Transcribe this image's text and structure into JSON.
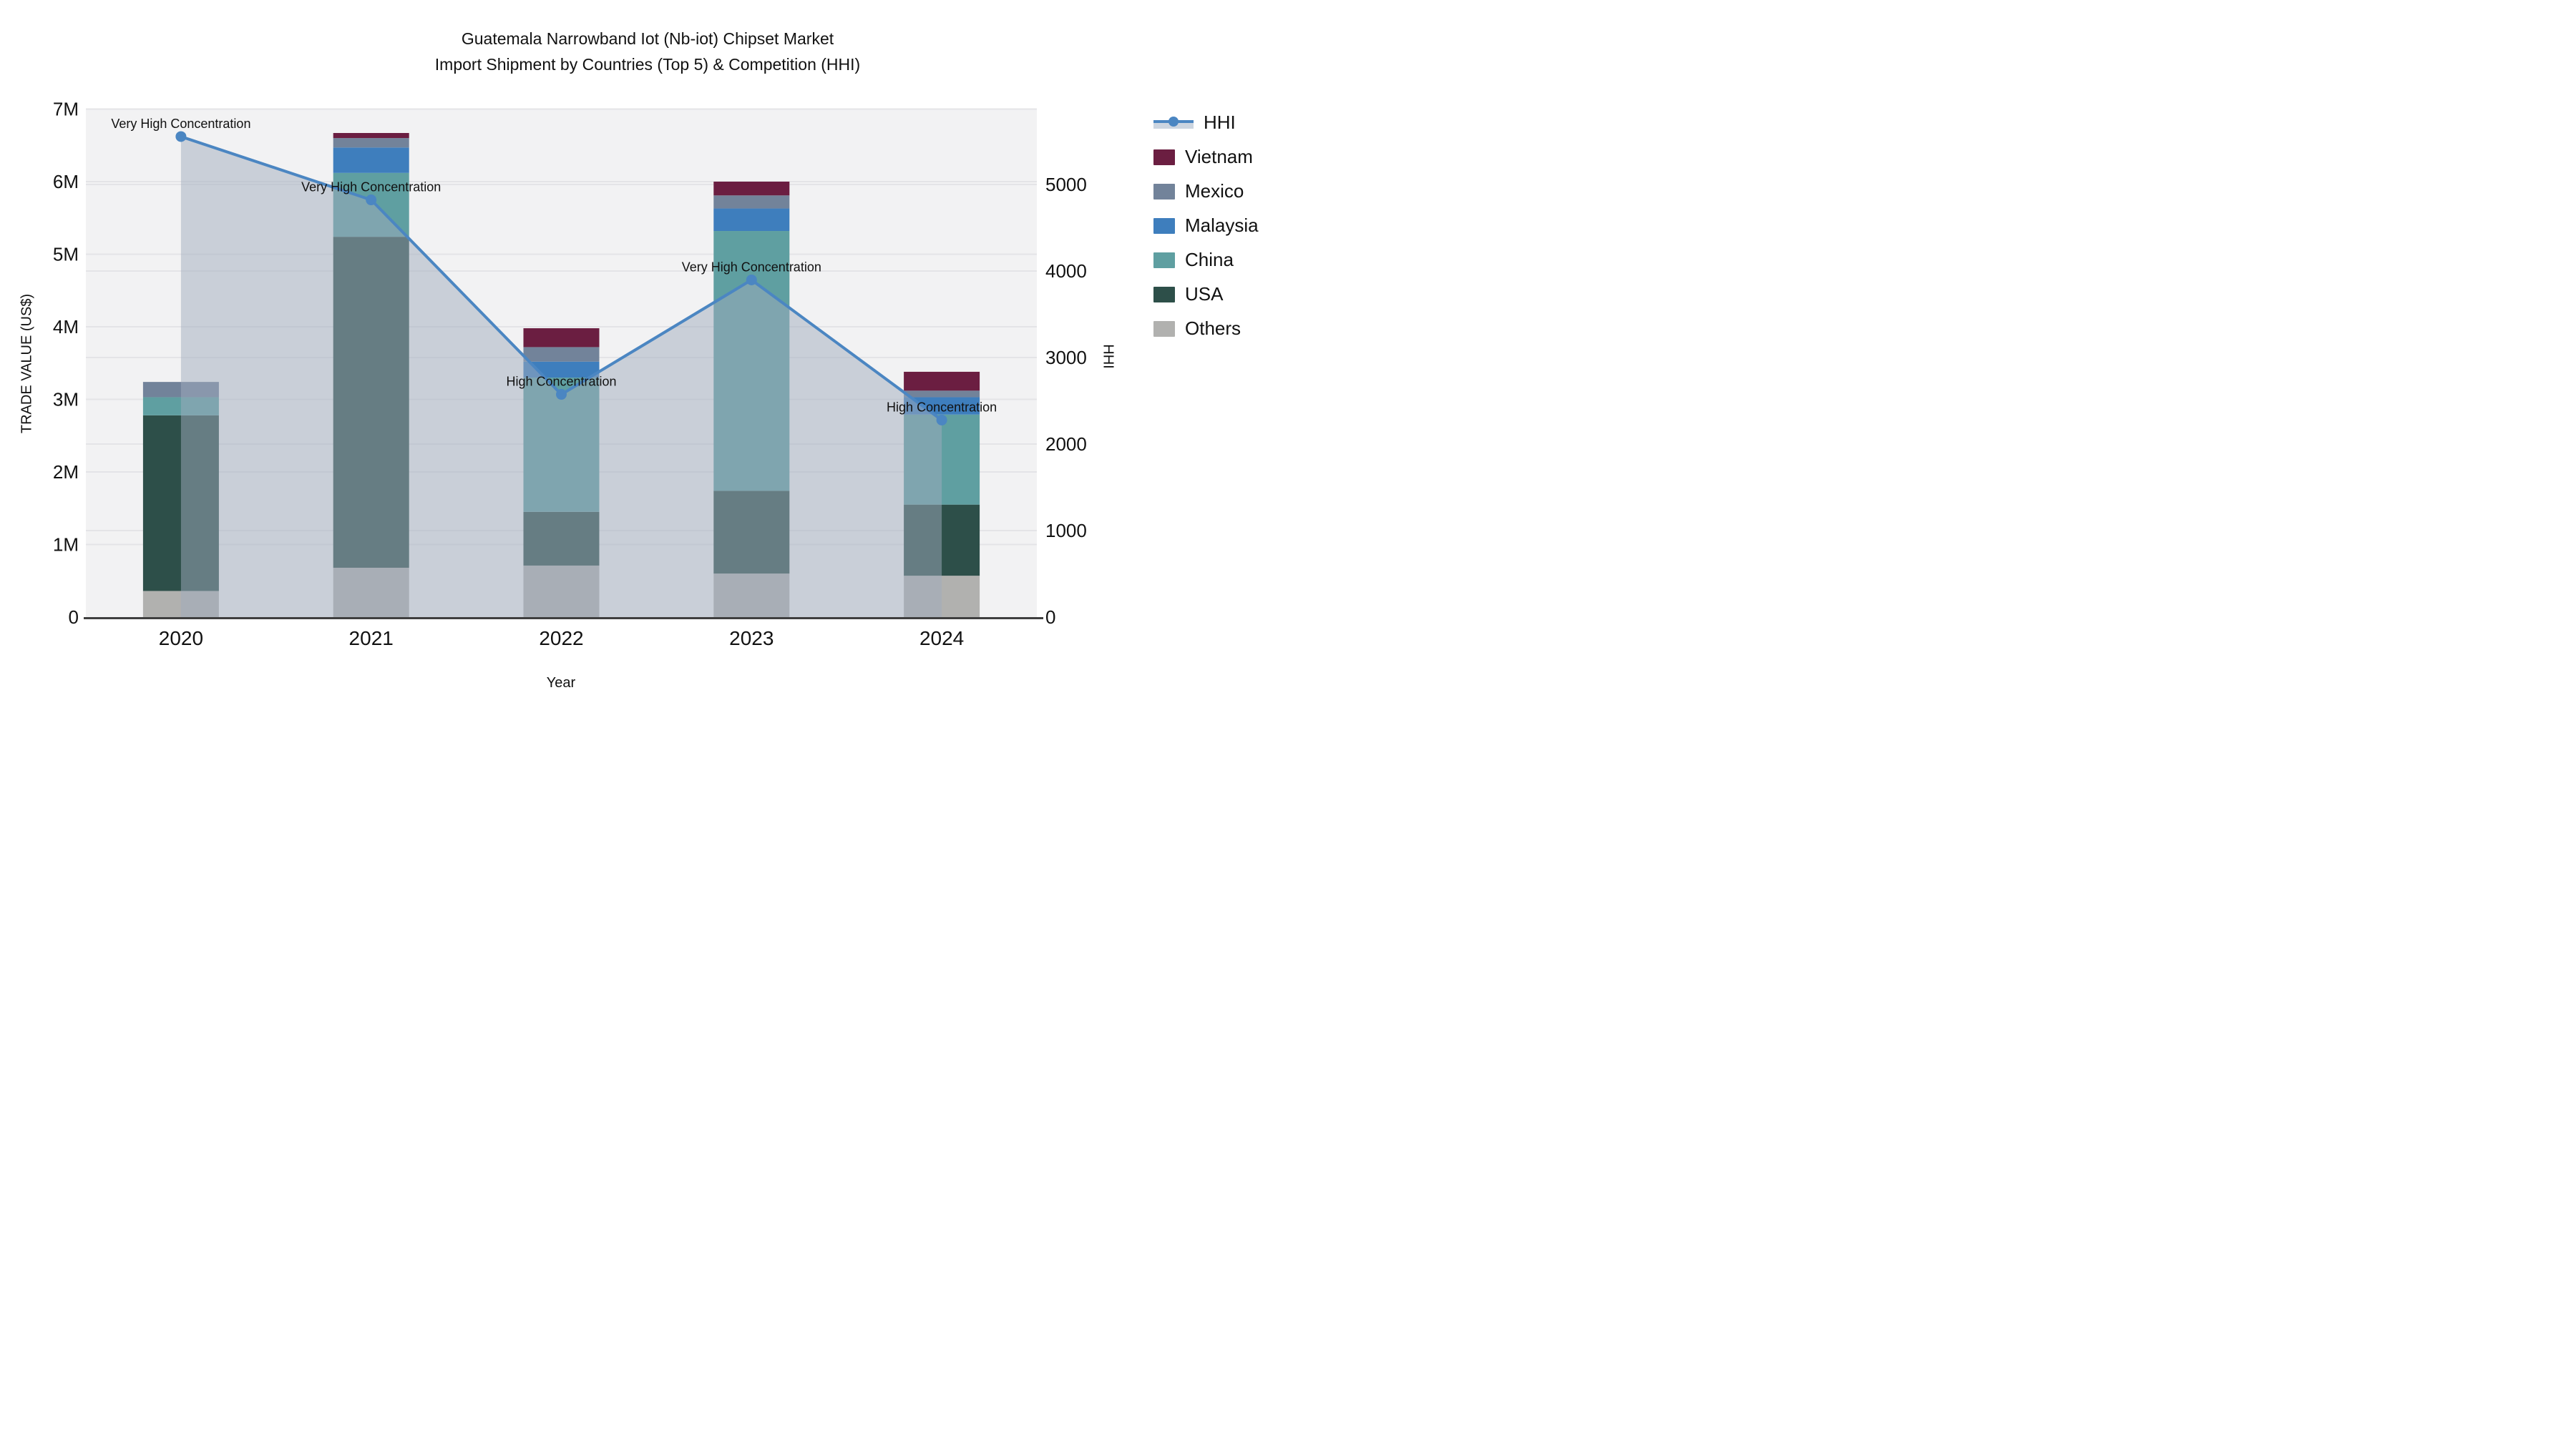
{
  "chart": {
    "title_line1": "Guatemala Narrowband Iot (Nb-iot) Chipset Market",
    "title_line2": "Import Shipment by Countries (Top 5) & Competition (HHI)",
    "xlabel": "Year",
    "ylabel_left": "TRADE VALUE (US$)",
    "ylabel_right": "HHI"
  },
  "legend": {
    "items": [
      {
        "label": "HHI",
        "type": "line",
        "color": "#4b86c2",
        "band": "#ccd5e0"
      },
      {
        "label": "Vietnam",
        "type": "box",
        "color": "#6b1e41"
      },
      {
        "label": "Mexico",
        "type": "box",
        "color": "#72839a"
      },
      {
        "label": "Malaysia",
        "type": "box",
        "color": "#3e7ebd"
      },
      {
        "label": "China",
        "type": "box",
        "color": "#5f9fa1"
      },
      {
        "label": "USA",
        "type": "box",
        "color": "#2d4f49"
      },
      {
        "label": "Others",
        "type": "box",
        "color": "#b1b1af"
      }
    ]
  },
  "chart_data": {
    "type": "bar",
    "subtype": "stacked-bars-with-line-overlay",
    "title": "Guatemala Narrowband Iot (Nb-iot) Chipset Market Import Shipment by Countries (Top 5) & Competition (HHI)",
    "xlabel": "Year",
    "ylabel": "TRADE VALUE (US$)",
    "ylabel_right": "HHI",
    "categories": [
      "2020",
      "2021",
      "2022",
      "2023",
      "2024"
    ],
    "values_unit": "million US$",
    "series": [
      {
        "name": "Others",
        "color": "#b1b1af",
        "values": [
          0.36,
          0.68,
          0.71,
          0.6,
          0.57
        ]
      },
      {
        "name": "USA",
        "color": "#2d4f49",
        "values": [
          2.42,
          4.56,
          0.74,
          1.14,
          0.98
        ]
      },
      {
        "name": "China",
        "color": "#5f9fa1",
        "values": [
          0.25,
          0.88,
          1.85,
          3.58,
          1.24
        ]
      },
      {
        "name": "Malaysia",
        "color": "#3e7ebd",
        "values": [
          0.0,
          0.35,
          0.22,
          0.31,
          0.24
        ]
      },
      {
        "name": "Mexico",
        "color": "#72839a",
        "values": [
          0.21,
          0.13,
          0.2,
          0.18,
          0.09
        ]
      },
      {
        "name": "Vietnam",
        "color": "#6b1e41",
        "values": [
          0.0,
          0.07,
          0.26,
          0.19,
          0.26
        ]
      }
    ],
    "bar_totals": [
      3.24,
      6.67,
      3.98,
      6.0,
      3.38
    ],
    "line_series": {
      "name": "HHI",
      "axis": "right",
      "color": "#4b86c2",
      "fill_color": "#9fabbe",
      "fill_opacity": 0.5,
      "values": [
        5554,
        4822,
        2574,
        3897,
        2277
      ]
    },
    "annotations": [
      "Very High Concentration",
      "Very High Concentration",
      "High Concentration",
      "Very High Concentration",
      "High Concentration"
    ],
    "left_axis": {
      "ticks": [
        "0",
        "1M",
        "2M",
        "3M",
        "4M",
        "5M",
        "6M",
        "7M"
      ],
      "min": 0,
      "max": 7
    },
    "right_axis": {
      "ticks": [
        "0",
        "1000",
        "2000",
        "3000",
        "4000",
        "5000"
      ],
      "min": 0,
      "max": 5000
    },
    "grid": true,
    "legend_position": "right",
    "plot_bg": "#f2f2f3",
    "grid_color": "#e4e4e7",
    "axis_line_color": "#3f3f3f"
  }
}
